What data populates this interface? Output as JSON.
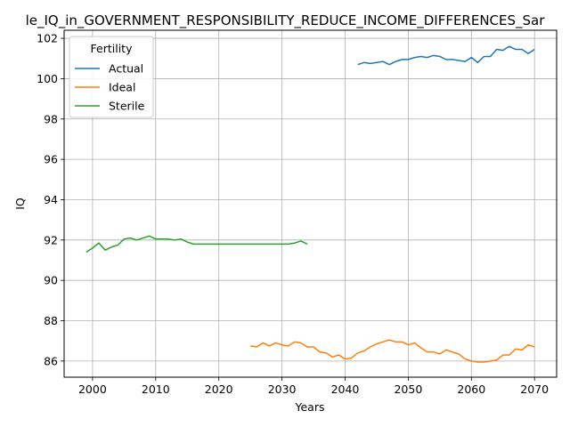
{
  "chart_data": {
    "type": "line",
    "title": "le_IQ_in_GOVERNMENT_RESPONSIBILITY_REDUCE_INCOME_DIFFERENCES_Sar",
    "xlabel": "Years",
    "ylabel": "IQ",
    "xlim": [
      1995.5,
      2073.5
    ],
    "ylim": [
      85.2,
      102.4
    ],
    "xticks": [
      2000,
      2010,
      2020,
      2030,
      2040,
      2050,
      2060,
      2070
    ],
    "yticks": [
      86,
      88,
      90,
      92,
      94,
      96,
      98,
      100,
      102
    ],
    "grid": true,
    "legend": {
      "title": "Fertility",
      "placement": "top-left"
    },
    "series": [
      {
        "name": "Actual",
        "color": "#1f77b4",
        "x": [
          2042,
          2043,
          2044,
          2045,
          2046,
          2047,
          2048,
          2049,
          2050,
          2051,
          2052,
          2053,
          2054,
          2055,
          2056,
          2057,
          2058,
          2059,
          2060,
          2061,
          2062,
          2063,
          2064,
          2065,
          2066,
          2067,
          2068,
          2069,
          2070
        ],
        "y": [
          100.7,
          100.8,
          100.75,
          100.8,
          100.85,
          100.7,
          100.85,
          100.95,
          100.95,
          101.05,
          101.1,
          101.05,
          101.15,
          101.1,
          100.95,
          100.95,
          100.9,
          100.85,
          101.05,
          100.8,
          101.1,
          101.1,
          101.45,
          101.4,
          101.6,
          101.45,
          101.45,
          101.25,
          101.45
        ]
      },
      {
        "name": "Ideal",
        "color": "#ff7f0e",
        "x": [
          2025,
          2026,
          2027,
          2028,
          2029,
          2030,
          2031,
          2032,
          2033,
          2034,
          2035,
          2036,
          2037,
          2038,
          2039,
          2040,
          2041,
          2042,
          2043,
          2044,
          2045,
          2046,
          2047,
          2048,
          2049,
          2050,
          2051,
          2052,
          2053,
          2054,
          2055,
          2056,
          2057,
          2058,
          2059,
          2060,
          2061,
          2062,
          2063,
          2064,
          2065,
          2066,
          2067,
          2068,
          2069,
          2070
        ],
        "y": [
          86.75,
          86.7,
          86.9,
          86.75,
          86.9,
          86.8,
          86.75,
          86.95,
          86.9,
          86.7,
          86.7,
          86.45,
          86.4,
          86.2,
          86.3,
          86.1,
          86.15,
          86.4,
          86.5,
          86.7,
          86.85,
          86.95,
          87.05,
          86.95,
          86.95,
          86.8,
          86.9,
          86.65,
          86.45,
          86.45,
          86.35,
          86.55,
          86.45,
          86.35,
          86.1,
          86.0,
          85.95,
          85.95,
          86.0,
          86.05,
          86.3,
          86.3,
          86.6,
          86.55,
          86.8,
          86.7
        ]
      },
      {
        "name": "Sterile",
        "color": "#2ca02c",
        "x": [
          1999,
          2000,
          2001,
          2002,
          2003,
          2004,
          2005,
          2006,
          2007,
          2008,
          2009,
          2010,
          2011,
          2012,
          2013,
          2014,
          2015,
          2016,
          2017,
          2018,
          2019,
          2020,
          2021,
          2022,
          2023,
          2024,
          2025,
          2026,
          2027,
          2028,
          2029,
          2030,
          2031,
          2032,
          2033,
          2034
        ],
        "y": [
          91.4,
          91.6,
          91.85,
          91.5,
          91.65,
          91.75,
          92.05,
          92.1,
          92.0,
          92.1,
          92.2,
          92.05,
          92.05,
          92.05,
          92.0,
          92.05,
          91.9,
          91.8,
          91.8,
          91.8,
          91.8,
          91.8,
          91.8,
          91.8,
          91.8,
          91.8,
          91.8,
          91.8,
          91.8,
          91.8,
          91.8,
          91.8,
          91.8,
          91.85,
          91.95,
          91.8
        ]
      }
    ]
  }
}
